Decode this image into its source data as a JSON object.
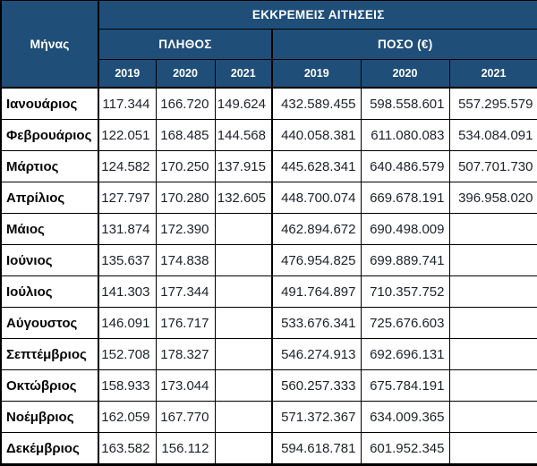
{
  "table": {
    "title": "ΕΚΚΡΕΜΕΙΣ ΑΙΤΗΣΕΙΣ",
    "month_header": "Μήνας",
    "group_headers": {
      "count": "ΠΛΗΘΟΣ",
      "amount": "ΠΟΣΟ (€)"
    },
    "year_headers": [
      "2019",
      "2020",
      "2021",
      "2019",
      "2020",
      "2021"
    ],
    "rows": [
      {
        "month": "Ιανουάριος",
        "plithos": [
          "117.344",
          "166.720",
          "149.624"
        ],
        "poso": [
          "432.589.455",
          "598.558.601",
          "557.295.579"
        ]
      },
      {
        "month": "Φεβρουάριος",
        "plithos": [
          "122.051",
          "168.485",
          "144.568"
        ],
        "poso": [
          "440.058.381",
          "611.080.083",
          "534.084.091"
        ]
      },
      {
        "month": "Μάρτιος",
        "plithos": [
          "124.582",
          "170.250",
          "137.915"
        ],
        "poso": [
          "445.628.341",
          "640.486.579",
          "507.701.730"
        ]
      },
      {
        "month": "Απρίλιος",
        "plithos": [
          "127.797",
          "170.280",
          "132.605"
        ],
        "poso": [
          "448.700.074",
          "669.678.191",
          "396.958.020"
        ]
      },
      {
        "month": "Μάιος",
        "plithos": [
          "131.874",
          "172.390",
          ""
        ],
        "poso": [
          "462.894.672",
          "690.498.009",
          ""
        ]
      },
      {
        "month": "Ιούνιος",
        "plithos": [
          "135.637",
          "174.838",
          ""
        ],
        "poso": [
          "476.954.825",
          "699.889.741",
          ""
        ]
      },
      {
        "month": "Ιούλιος",
        "plithos": [
          "141.303",
          "177.344",
          ""
        ],
        "poso": [
          "491.764.897",
          "710.357.752",
          ""
        ]
      },
      {
        "month": "Αύγουστος",
        "plithos": [
          "146.091",
          "176.717",
          ""
        ],
        "poso": [
          "533.676.341",
          "725.676.603",
          ""
        ]
      },
      {
        "month": "Σεπτέμβριος",
        "plithos": [
          "152.708",
          "178.327",
          ""
        ],
        "poso": [
          "546.274.913",
          "692.696.131",
          ""
        ]
      },
      {
        "month": "Οκτώβριος",
        "plithos": [
          "158.933",
          "173.044",
          ""
        ],
        "poso": [
          "560.257.333",
          "675.784.191",
          ""
        ]
      },
      {
        "month": "Νοέμβριος",
        "plithos": [
          "162.059",
          "167.770",
          ""
        ],
        "poso": [
          "571.372.367",
          "634.009.365",
          ""
        ]
      },
      {
        "month": "Δεκέμβριος",
        "plithos": [
          "163.582",
          "156.112",
          ""
        ],
        "poso": [
          "594.618.781",
          "601.952.345",
          ""
        ]
      }
    ]
  },
  "colors": {
    "header_bg": "#1F4E79",
    "header_text": "#FFFFFF",
    "border": "#000000",
    "value_text": "#1D2129"
  },
  "chart_data": {
    "type": "table",
    "title": "ΕΚΚΡΕΜΕΙΣ ΑΙΤΗΣΕΙΣ",
    "column_groups": [
      "ΠΛΗΘΟΣ",
      "ΠΟΣΟ (€)"
    ],
    "columns": [
      "Μήνας",
      "ΠΛΗΘΟΣ 2019",
      "ΠΛΗΘΟΣ 2020",
      "ΠΛΗΘΟΣ 2021",
      "ΠΟΣΟ (€) 2019",
      "ΠΟΣΟ (€) 2020",
      "ΠΟΣΟ (€) 2021"
    ],
    "rows": [
      [
        "Ιανουάριος",
        117344,
        166720,
        149624,
        432589455,
        598558601,
        557295579
      ],
      [
        "Φεβρουάριος",
        122051,
        168485,
        144568,
        440058381,
        611080083,
        534084091
      ],
      [
        "Μάρτιος",
        124582,
        170250,
        137915,
        445628341,
        640486579,
        507701730
      ],
      [
        "Απρίλιος",
        127797,
        170280,
        132605,
        448700074,
        669678191,
        396958020
      ],
      [
        "Μάιος",
        131874,
        172390,
        null,
        462894672,
        690498009,
        null
      ],
      [
        "Ιούνιος",
        135637,
        174838,
        null,
        476954825,
        699889741,
        null
      ],
      [
        "Ιούλιος",
        141303,
        177344,
        null,
        491764897,
        710357752,
        null
      ],
      [
        "Αύγουστος",
        146091,
        176717,
        null,
        533676341,
        725676603,
        null
      ],
      [
        "Σεπτέμβριος",
        152708,
        178327,
        null,
        546274913,
        692696131,
        null
      ],
      [
        "Οκτώβριος",
        158933,
        173044,
        null,
        560257333,
        675784191,
        null
      ],
      [
        "Νοέμβριος",
        162059,
        167770,
        null,
        571372367,
        634009365,
        null
      ],
      [
        "Δεκέμβριος",
        163582,
        156112,
        null,
        594618781,
        601952345,
        null
      ]
    ]
  }
}
